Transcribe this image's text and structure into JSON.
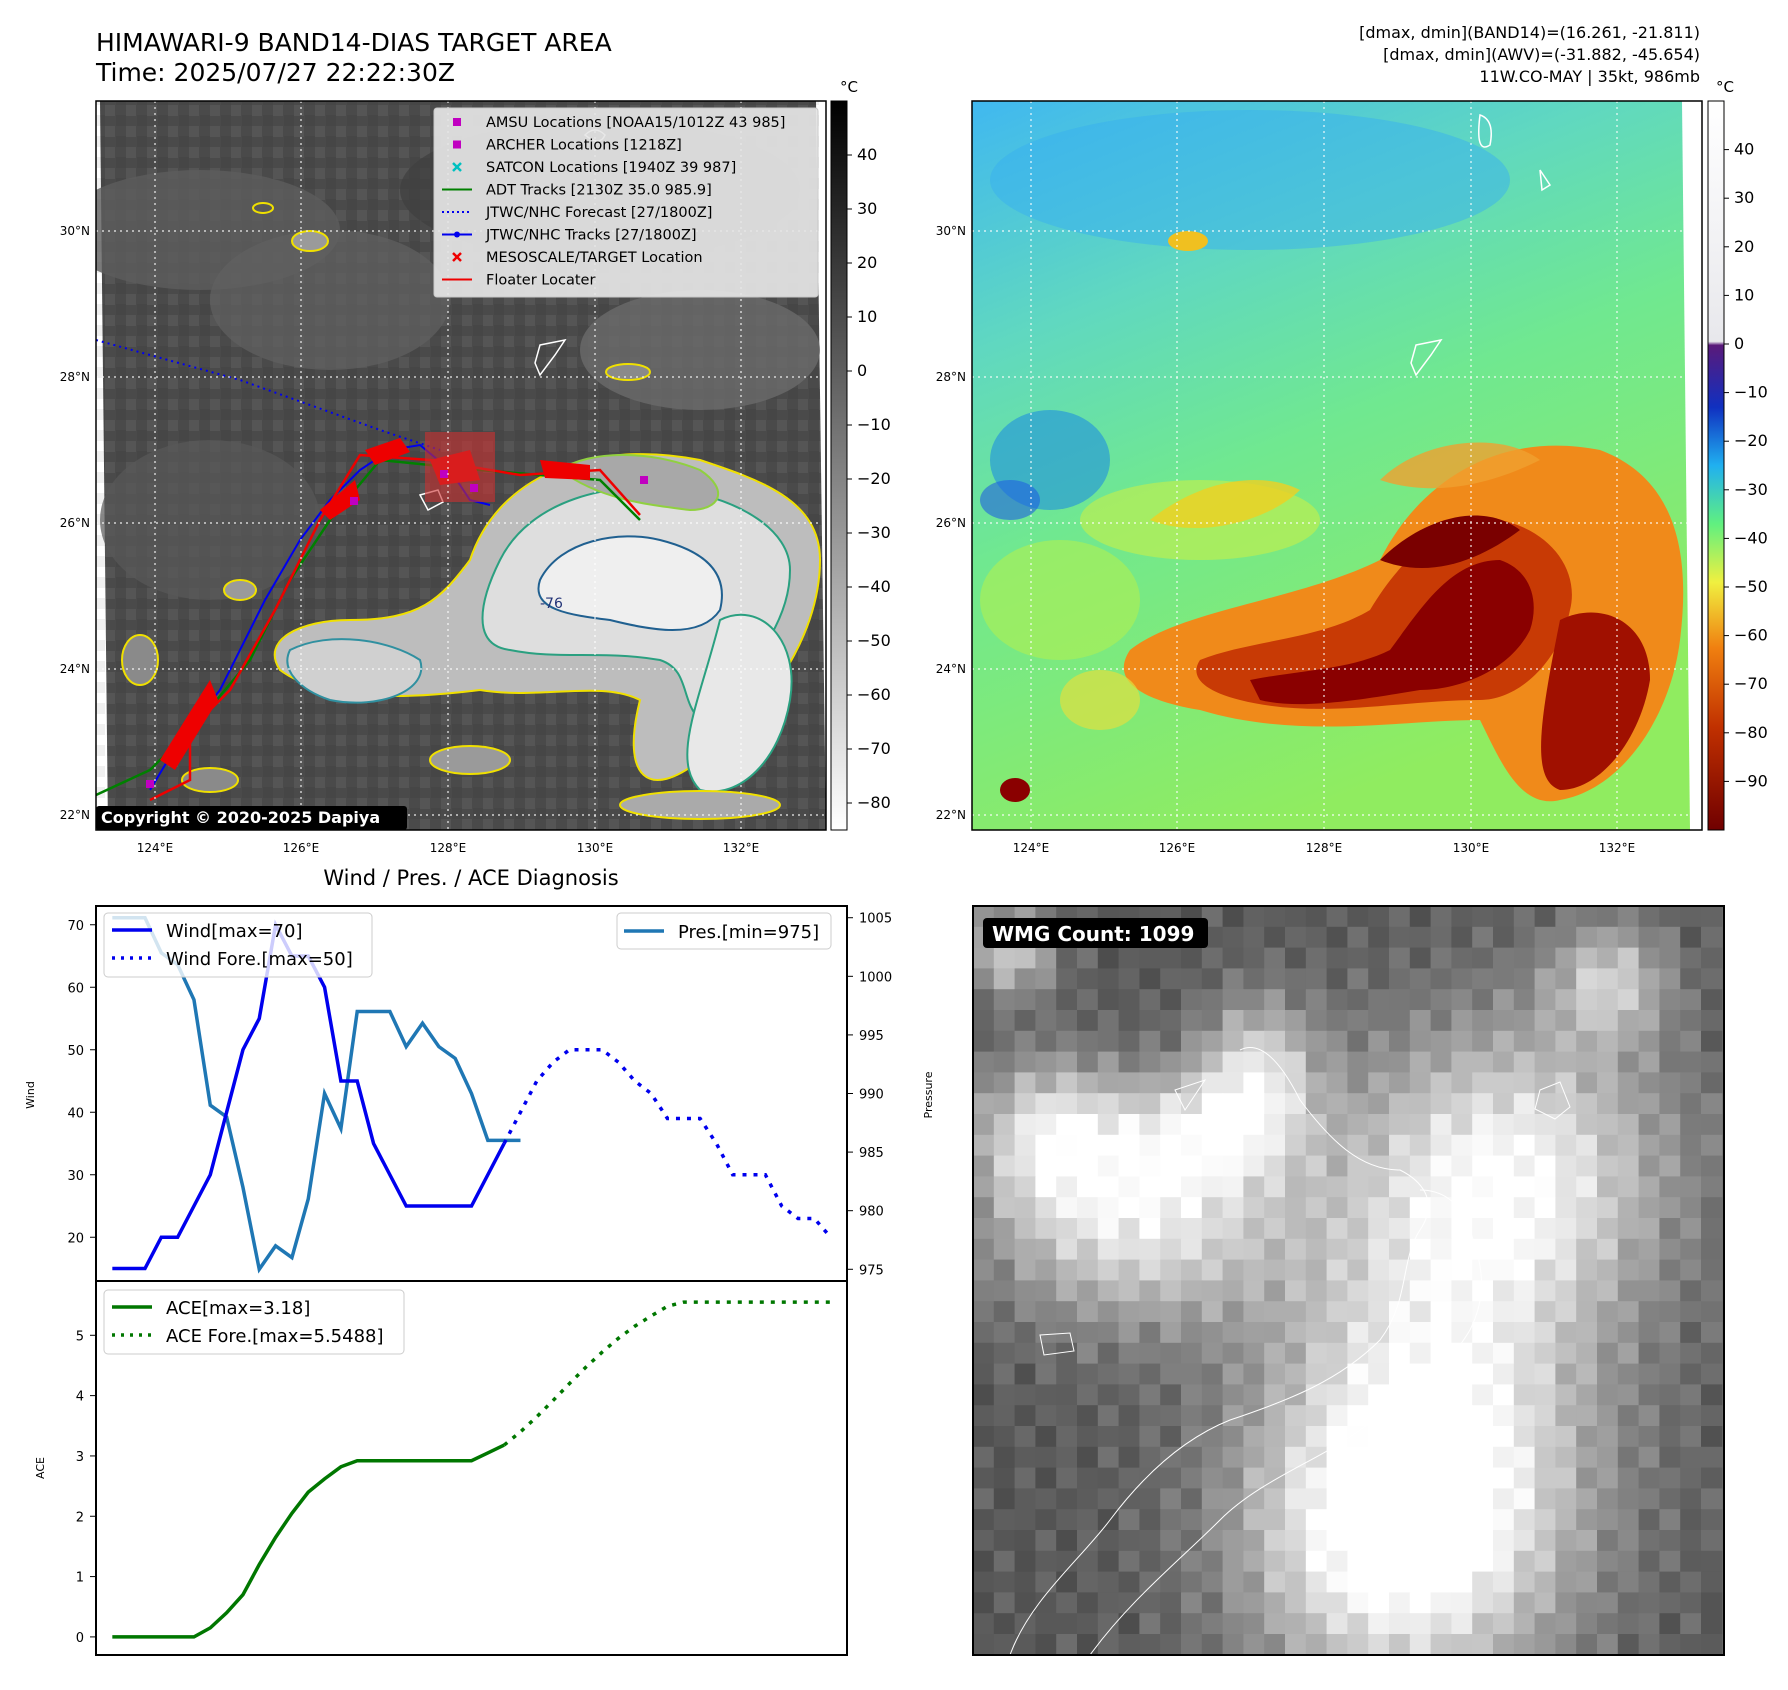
{
  "title_line1": "HIMAWARI-9 BAND14-DIAS TARGET AREA",
  "title_line2": "Time: 2025/07/27 22:22:30Z",
  "info_line1": "[dmax, dmin](BAND14)=(16.261, -21.811)",
  "info_line2": "[dmax, dmin](AWV)=(-31.882, -45.654)",
  "info_line3": "11W.CO-MAY | 35kt, 986mb",
  "copyright": "Copyright © 2020-2025 Dapiya",
  "wmg_count": "WMG Count: 1099",
  "diag_title": "Wind / Pres. / ACE Diagnosis",
  "colorbar_unit": "°C",
  "colors": {
    "wind": "#0000ee",
    "pres": "#1f77b4",
    "ace": "#007700",
    "track": "#ee0000"
  },
  "map_axes": {
    "lon_labels": [
      "124°E",
      "126°E",
      "128°E",
      "130°E",
      "132°E"
    ],
    "lat_labels": [
      "30°N",
      "28°N",
      "26°N",
      "24°N",
      "22°N"
    ],
    "contour_label": "-76"
  },
  "legend_items": [
    {
      "label": "AMSU Locations [NOAA15/1012Z 43 985]",
      "marker": "square",
      "color": "#c000c0"
    },
    {
      "label": "ARCHER Locations [1218Z]",
      "marker": "square",
      "color": "#c000c0"
    },
    {
      "label": "SATCON Locations [1940Z 39 987]",
      "marker": "x",
      "color": "#00c0c0"
    },
    {
      "label": "ADT Tracks [2130Z 35.0 985.9]",
      "marker": "line",
      "color": "#008000"
    },
    {
      "label": "JTWC/NHC Forecast [27/1800Z]",
      "marker": "dotted",
      "color": "#0000ee"
    },
    {
      "label": "JTWC/NHC Tracks [27/1800Z]",
      "marker": "line-dot",
      "color": "#0000ee"
    },
    {
      "label": "MESOSCALE/TARGET Location",
      "marker": "x",
      "color": "#ee0000"
    },
    {
      "label": "Floater Locater",
      "marker": "line",
      "color": "#ee0000"
    }
  ],
  "colorbar_gray": {
    "ticks": [
      "40",
      "30",
      "20",
      "10",
      "0",
      "−10",
      "−20",
      "−30",
      "−40",
      "−50",
      "−60",
      "−70",
      "−80"
    ],
    "tick_values": [
      40,
      30,
      20,
      10,
      0,
      -10,
      -20,
      -30,
      -40,
      -50,
      -60,
      -70,
      -80
    ],
    "range": [
      -85,
      50
    ]
  },
  "colorbar_color": {
    "ticks": [
      "40",
      "30",
      "20",
      "10",
      "0",
      "−10",
      "−20",
      "−30",
      "−40",
      "−50",
      "−60",
      "−70",
      "−80",
      "−90"
    ],
    "tick_values": [
      40,
      30,
      20,
      10,
      0,
      -10,
      -20,
      -30,
      -40,
      -50,
      -60,
      -70,
      -80,
      -90
    ],
    "range": [
      -100,
      50
    ]
  },
  "chart_data": [
    {
      "type": "line",
      "series": [
        {
          "name": "Wind[max=70]",
          "axis": "left",
          "style": "solid",
          "color": "#0000ee",
          "x": [
            0,
            1,
            2,
            3,
            4,
            5,
            6,
            7,
            8,
            9,
            10,
            11,
            12,
            13,
            14,
            15,
            16,
            17,
            18,
            19,
            20,
            21,
            22,
            23,
            24
          ],
          "y": [
            15,
            15,
            15,
            20,
            20,
            25,
            30,
            40,
            50,
            55,
            70,
            65,
            65,
            60,
            45,
            45,
            35,
            30,
            25,
            25,
            25,
            25,
            25,
            30,
            35
          ]
        },
        {
          "name": "Wind Fore.[max=50]",
          "axis": "left",
          "style": "dotted",
          "color": "#0000ee",
          "x": [
            24,
            25,
            26,
            27,
            28,
            29,
            30,
            31,
            32,
            33,
            34,
            35,
            36,
            37,
            38,
            39,
            40,
            41,
            42,
            43,
            44
          ],
          "y": [
            35,
            40,
            45,
            48,
            50,
            50,
            50,
            48,
            45,
            43,
            39,
            39,
            39,
            35,
            30,
            30,
            30,
            25,
            23,
            23,
            20
          ]
        }
      ],
      "series_right": [
        {
          "name": "Pres.[min=975]",
          "axis": "right",
          "style": "solid",
          "color": "#1f77b4",
          "x": [
            0,
            1,
            2,
            3,
            4,
            5,
            6,
            7,
            8,
            9,
            10,
            11,
            12,
            13,
            14,
            15,
            16,
            17,
            18,
            19,
            20,
            21,
            22,
            23,
            24,
            25
          ],
          "y": [
            1005,
            1005,
            1005,
            1002,
            1001,
            998,
            989,
            988,
            982,
            975,
            977,
            976,
            981,
            990,
            987,
            997,
            997,
            997,
            994,
            996,
            994,
            993,
            990,
            986,
            986,
            986
          ]
        }
      ],
      "ylabel": "Wind",
      "ylabel_right": "Pressure",
      "left_ticks": [
        20,
        30,
        40,
        50,
        60,
        70
      ],
      "right_ticks": [
        975,
        980,
        985,
        990,
        995,
        1000,
        1005
      ],
      "ylim": [
        13,
        73
      ],
      "ylim_right": [
        974,
        1006
      ],
      "xlim": [
        -1,
        45
      ]
    },
    {
      "type": "line",
      "series": [
        {
          "name": "ACE[max=3.18]",
          "style": "solid",
          "color": "#007700",
          "x": [
            0,
            1,
            2,
            3,
            4,
            5,
            6,
            7,
            8,
            9,
            10,
            11,
            12,
            13,
            14,
            15,
            16,
            17,
            18,
            19,
            20,
            21,
            22,
            23,
            24
          ],
          "y": [
            0,
            0,
            0,
            0,
            0,
            0,
            0.15,
            0.4,
            0.7,
            1.2,
            1.65,
            2.05,
            2.4,
            2.62,
            2.82,
            2.92,
            2.92,
            2.92,
            2.92,
            2.92,
            2.92,
            2.92,
            2.92,
            3.05,
            3.18
          ]
        },
        {
          "name": "ACE Fore.[max=5.5488]",
          "style": "dotted",
          "color": "#007700",
          "x": [
            24,
            25,
            26,
            27,
            28,
            29,
            30,
            31,
            32,
            33,
            34,
            35,
            36,
            37,
            38,
            39,
            40,
            41,
            42,
            43,
            44
          ],
          "y": [
            3.18,
            3.4,
            3.65,
            3.92,
            4.2,
            4.47,
            4.72,
            4.95,
            5.15,
            5.32,
            5.48,
            5.55,
            5.55,
            5.55,
            5.55,
            5.55,
            5.55,
            5.55,
            5.55,
            5.55,
            5.55
          ]
        }
      ],
      "ylabel": "ACE",
      "y_ticks": [
        0,
        1,
        2,
        3,
        4,
        5
      ],
      "ylim": [
        -0.3,
        5.9
      ],
      "xlim": [
        -1,
        45
      ]
    }
  ]
}
